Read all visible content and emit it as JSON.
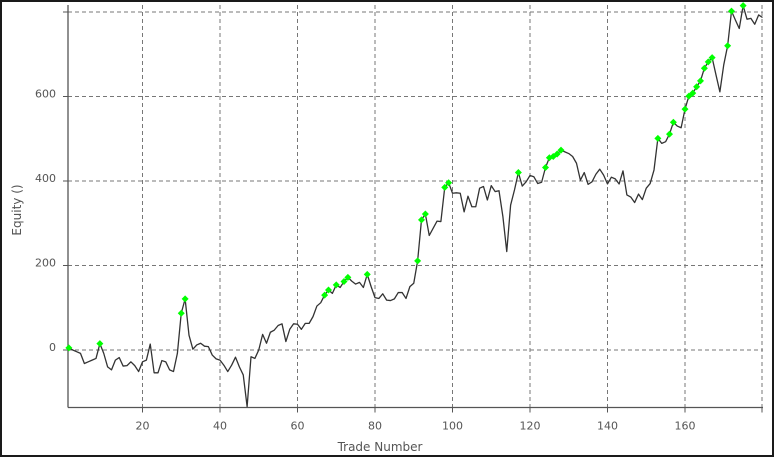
{
  "chart_data": {
    "type": "line",
    "title": "",
    "xlabel": "Trade Number",
    "ylabel": "Equity ()",
    "xlim": [
      0.8,
      180.5
    ],
    "ylim": [
      -135,
      817
    ],
    "x_ticks": [
      20,
      40,
      60,
      80,
      100,
      120,
      140,
      160
    ],
    "x_tick_labels": [
      "20",
      "40",
      "60",
      "80",
      "100",
      "120",
      "140",
      "160"
    ],
    "y_ticks": [
      0,
      200,
      400,
      600,
      800
    ],
    "y_tick_labels": [
      "0",
      "200",
      "400",
      "600",
      ""
    ],
    "grid": true,
    "grid_style": "dashed",
    "line_color": "#333333",
    "marker_color": "#00ff00",
    "series": [
      {
        "x_start": 1,
        "values": [
          5,
          0,
          -4,
          -8,
          -32,
          -28,
          -24,
          -20,
          15,
          -8,
          -40,
          -47,
          -24,
          -18,
          -38,
          -37,
          -28,
          -37,
          -51,
          -28,
          -24,
          14,
          -54,
          -54,
          -25,
          -28,
          -47,
          -51,
          -8,
          87,
          121,
          35,
          2,
          12,
          16,
          9,
          8,
          -12,
          -21,
          -24,
          -36,
          -51,
          -36,
          -17,
          -40,
          -59,
          -134,
          -16,
          -20,
          0,
          37,
          16,
          42,
          47,
          58,
          62,
          20,
          49,
          62,
          61,
          49,
          63,
          63,
          79,
          104,
          112,
          130,
          142,
          134,
          154,
          148,
          162,
          172,
          163,
          156,
          160,
          148,
          179,
          150,
          124,
          122,
          133,
          118,
          117,
          121,
          136,
          136,
          122,
          150,
          158,
          211,
          308,
          322,
          271,
          288,
          305,
          304,
          385,
          396,
          371,
          372,
          371,
          327,
          364,
          339,
          339,
          383,
          387,
          355,
          389,
          375,
          377,
          316,
          233,
          343,
          379,
          420,
          388,
          398,
          413,
          410,
          394,
          397,
          432,
          455,
          458,
          464,
          473,
          469,
          465,
          458,
          442,
          402,
          420,
          392,
          398,
          416,
          428,
          414,
          393,
          409,
          405,
          393,
          424,
          367,
          362,
          349,
          369,
          356,
          383,
          394,
          426,
          501,
          489,
          493,
          511,
          539,
          530,
          526,
          570,
          601,
          608,
          623,
          637,
          667,
          682,
          692,
          651,
          611,
          675,
          720,
          802,
          781,
          761,
          815,
          783,
          785,
          771,
          793,
          787
        ]
      }
    ],
    "new_high_markers_x": [
      1,
      9,
      30,
      31,
      67,
      68,
      70,
      72,
      73,
      78,
      91,
      92,
      93,
      98,
      99,
      117,
      124,
      125,
      126,
      127,
      128,
      153,
      156,
      157,
      160,
      161,
      162,
      163,
      164,
      165,
      166,
      167,
      171,
      172,
      175
    ]
  }
}
